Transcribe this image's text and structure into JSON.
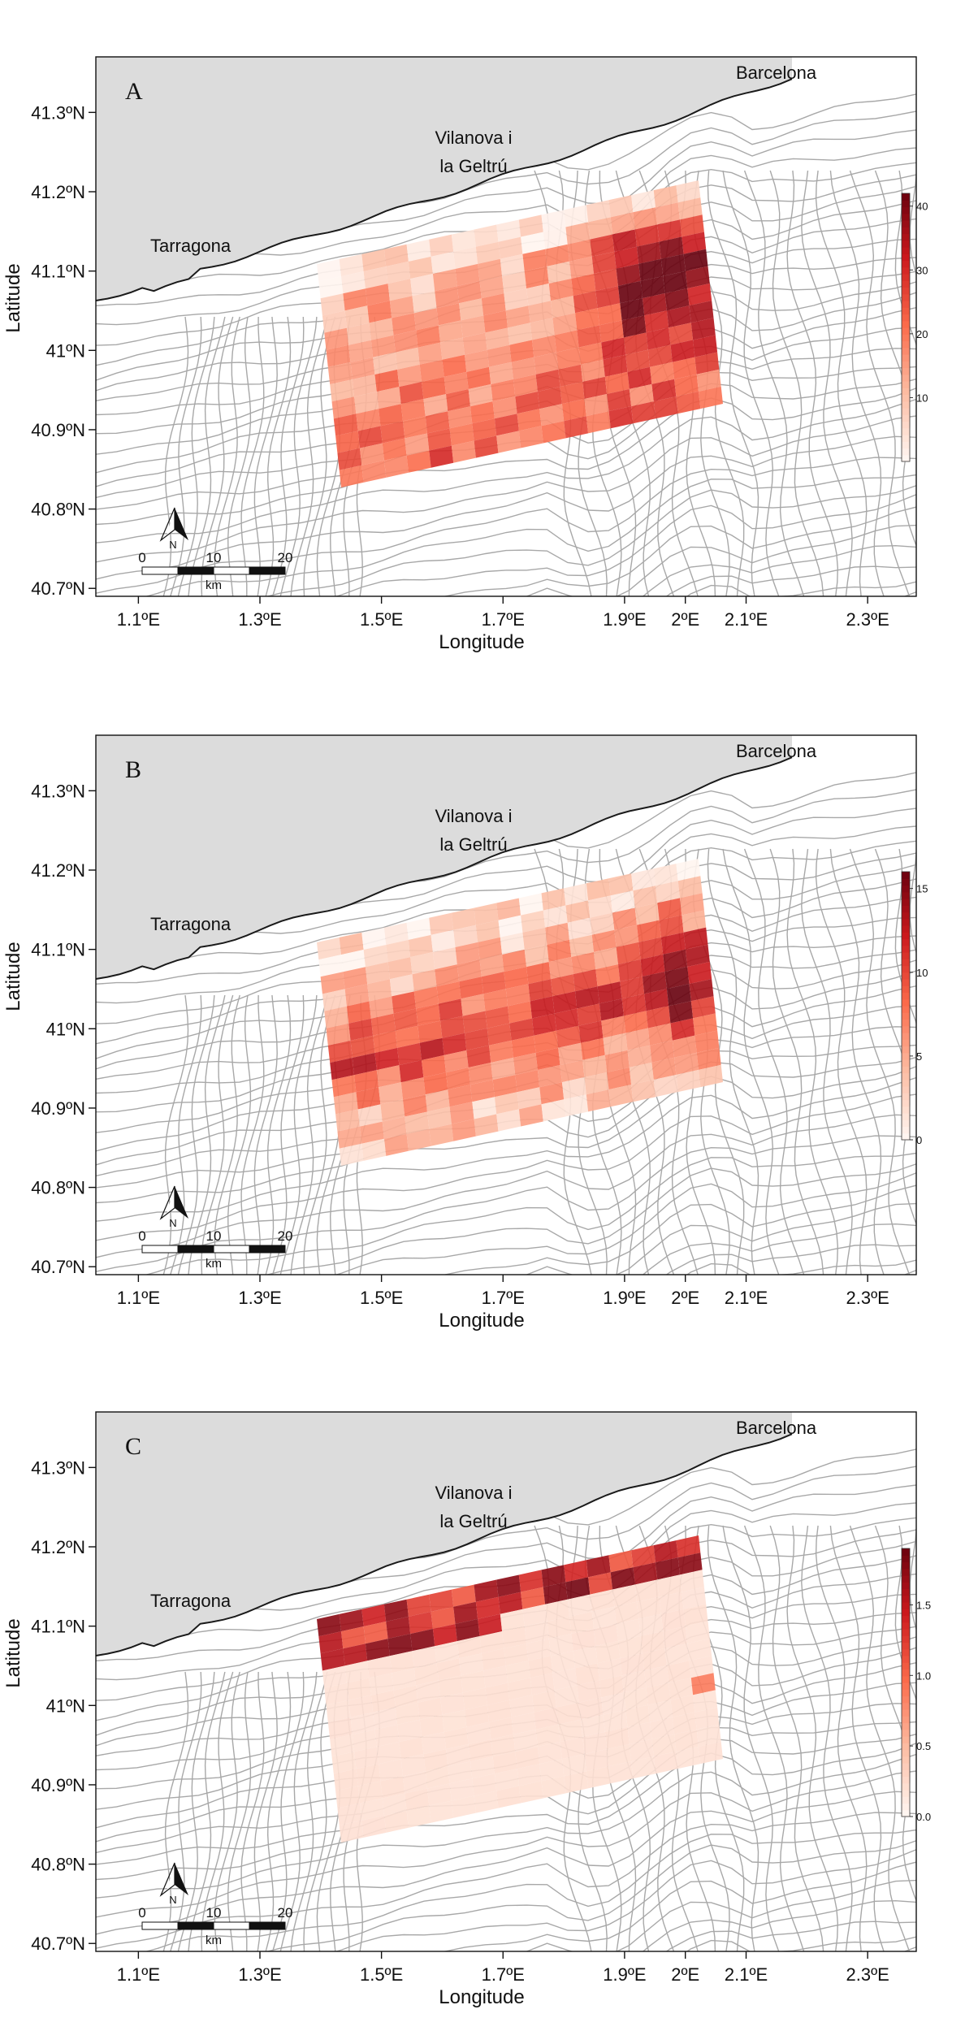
{
  "panels": [
    {
      "letter": "A",
      "legend_ticks": [
        "40",
        "30",
        "20",
        "10"
      ],
      "legend_max": 42,
      "legend_tick_values": [
        40,
        30,
        20,
        10
      ],
      "pattern": "east_hotspot"
    },
    {
      "letter": "B",
      "legend_ticks": [
        "15",
        "10",
        "5",
        "0"
      ],
      "legend_max": 16,
      "legend_tick_values": [
        15,
        10,
        5,
        0
      ],
      "pattern": "band_middle"
    },
    {
      "letter": "C",
      "legend_ticks": [
        "1.5",
        "1.0",
        "0.5",
        "0.0"
      ],
      "legend_max": 1.9,
      "legend_tick_values": [
        1.5,
        1.0,
        0.5,
        0.0
      ],
      "pattern": "coastal_strip"
    }
  ],
  "axes": {
    "xlabel": "Longitude",
    "ylabel": "Latitude",
    "x_ticks": [
      "1.1ºE",
      "1.3ºE",
      "1.5ºE",
      "1.7ºE",
      "1.9ºE",
      "2ºE",
      "2.1ºE",
      "2.3ºE"
    ],
    "x_tick_values": [
      1.1,
      1.3,
      1.5,
      1.7,
      1.9,
      2.0,
      2.1,
      2.3
    ],
    "y_ticks": [
      "41.3ºN",
      "41.2ºN",
      "41.1ºN",
      "41ºN",
      "40.9ºN",
      "40.8ºN",
      "40.7ºN"
    ],
    "y_tick_values": [
      41.3,
      41.2,
      41.1,
      41.0,
      40.9,
      40.8,
      40.7
    ],
    "xlim": [
      1.03,
      2.38
    ],
    "ylim": [
      40.69,
      41.37
    ]
  },
  "places": {
    "barcelona": "Barcelona",
    "vilanova_line1": "Vilanova i",
    "vilanova_line2": "la Geltrú",
    "tarragona": "Tarragona"
  },
  "scalebar": {
    "north": "N",
    "labels": [
      "0",
      "10",
      "20"
    ],
    "unit": "km"
  },
  "colors": {
    "land": "#dcdcdc",
    "coast": "#1a1a1a",
    "contour": "#a8a8a8",
    "ramp": [
      "#fff5f0",
      "#fcbba1",
      "#fb6a4a",
      "#cb181d",
      "#67000d"
    ]
  }
}
